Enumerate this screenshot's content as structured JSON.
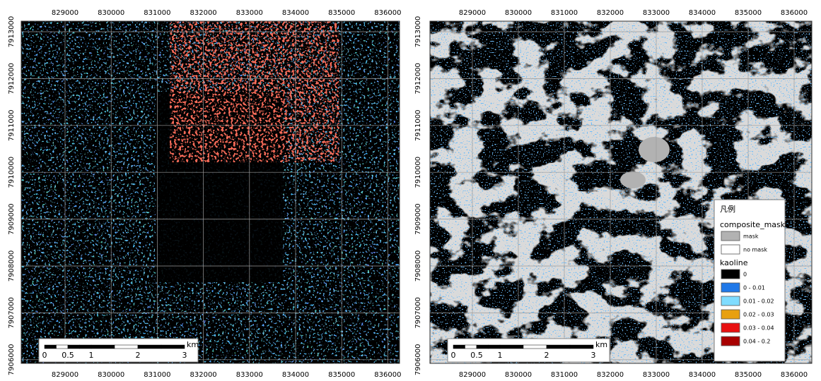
{
  "panels": [
    {
      "x_labels": [
        829000,
        830000,
        831000,
        832000,
        833000,
        834000,
        835000,
        836000
      ],
      "y_labels": [
        7913000,
        7912000,
        7911000,
        7910000,
        7909000,
        7908000,
        7907000,
        7906000
      ],
      "scale_bar": {
        "labels": [
          0,
          0.5,
          1,
          2,
          3
        ],
        "unit": "km"
      }
    },
    {
      "x_labels": [
        829000,
        830000,
        831000,
        832000,
        833000,
        834000,
        835000,
        836000
      ],
      "y_labels": [
        7913000,
        7912000,
        7911000,
        7910000,
        7909000,
        7908000,
        7907000,
        7906000
      ],
      "scale_bar": {
        "labels": [
          0,
          0.5,
          1,
          2,
          3
        ],
        "unit": "km"
      },
      "legend": {
        "title": "凡例",
        "groups": [
          {
            "name": "composite_mask",
            "items": [
              {
                "label": "mask",
                "color": "#b2b2b2"
              },
              {
                "label": "no mask",
                "color": "#ffffff"
              }
            ]
          },
          {
            "name": "kaoline",
            "items": [
              {
                "label": "0",
                "color": "#000000"
              },
              {
                "label": "0 - 0.01",
                "color": "#1f78e8"
              },
              {
                "label": "0.01 - 0.02",
                "color": "#7fdcff"
              },
              {
                "label": "0.02 - 0.03",
                "color": "#e8a010"
              },
              {
                "label": "0.03 - 0.04",
                "color": "#e81010"
              },
              {
                "label": "0.04 - 0.2",
                "color": "#a80000"
              }
            ]
          }
        ]
      }
    }
  ]
}
